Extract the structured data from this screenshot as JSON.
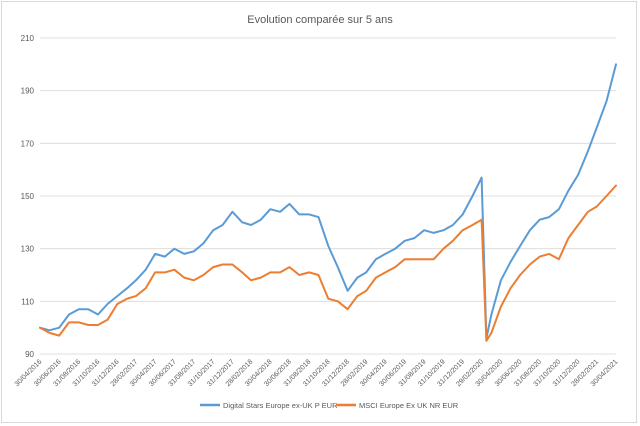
{
  "chart_data": {
    "type": "line",
    "title": "Evolution comparée sur 5 ans",
    "xlabel": "",
    "ylabel": "",
    "ylim": [
      90,
      210
    ],
    "yticks": [
      90,
      110,
      130,
      150,
      170,
      190,
      210
    ],
    "grid": "horizontal",
    "legend_position": "bottom",
    "x_tick_labels": [
      "30/04/2016",
      "30/06/2016",
      "31/08/2016",
      "31/10/2016",
      "31/12/2016",
      "28/02/2017",
      "30/04/2017",
      "30/06/2017",
      "31/08/2017",
      "31/10/2017",
      "31/12/2017",
      "28/02/2018",
      "30/04/2018",
      "30/06/2018",
      "31/08/2018",
      "31/10/2018",
      "31/12/2018",
      "28/02/2019",
      "30/04/2019",
      "30/06/2019",
      "31/08/2019",
      "31/10/2019",
      "31/12/2019",
      "29/02/2020",
      "30/04/2020",
      "30/06/2020",
      "31/08/2020",
      "31/10/2020",
      "31/12/2020",
      "28/02/2021",
      "30/04/2021"
    ],
    "x": [
      "30/04/2016",
      "30/05/2016",
      "30/06/2016",
      "31/07/2016",
      "31/08/2016",
      "30/09/2016",
      "31/10/2016",
      "30/11/2016",
      "31/12/2016",
      "31/01/2017",
      "28/02/2017",
      "31/03/2017",
      "30/04/2017",
      "31/05/2017",
      "30/06/2017",
      "31/07/2017",
      "31/08/2017",
      "30/09/2017",
      "31/10/2017",
      "30/11/2017",
      "31/12/2017",
      "31/01/2018",
      "28/02/2018",
      "31/03/2018",
      "30/04/2018",
      "31/05/2018",
      "30/06/2018",
      "31/07/2018",
      "31/08/2018",
      "30/09/2018",
      "31/10/2018",
      "30/11/2018",
      "31/12/2018",
      "31/01/2019",
      "28/02/2019",
      "31/03/2019",
      "30/04/2019",
      "31/05/2019",
      "30/06/2019",
      "31/07/2019",
      "31/08/2019",
      "30/09/2019",
      "31/10/2019",
      "30/11/2019",
      "31/12/2019",
      "31/01/2020",
      "29/02/2020",
      "15/03/2020",
      "31/03/2020",
      "30/04/2020",
      "31/05/2020",
      "30/06/2020",
      "31/07/2020",
      "31/08/2020",
      "30/09/2020",
      "31/10/2020",
      "30/11/2020",
      "31/12/2020",
      "31/01/2021",
      "28/02/2021",
      "31/03/2021",
      "30/04/2021"
    ],
    "series": [
      {
        "name": "Digital Stars Europe ex-UK P EUR",
        "color": "#5b9bd5",
        "values": [
          100,
          99,
          100,
          105,
          107,
          107,
          105,
          109,
          112,
          115,
          118,
          122,
          128,
          127,
          130,
          128,
          129,
          132,
          137,
          139,
          144,
          140,
          139,
          141,
          145,
          144,
          147,
          143,
          143,
          142,
          131,
          123,
          114,
          119,
          121,
          126,
          128,
          130,
          133,
          134,
          137,
          136,
          137,
          139,
          143,
          150,
          157,
          96,
          105,
          118,
          125,
          131,
          137,
          141,
          142,
          145,
          152,
          158,
          167,
          176,
          186,
          200
        ]
      },
      {
        "name": "MSCI Europe Ex UK NR EUR",
        "color": "#ed7d31",
        "values": [
          100,
          98,
          97,
          102,
          102,
          101,
          101,
          103,
          109,
          111,
          112,
          115,
          121,
          121,
          122,
          119,
          118,
          120,
          123,
          124,
          124,
          121,
          118,
          119,
          121,
          121,
          123,
          120,
          121,
          120,
          111,
          110,
          107,
          112,
          114,
          119,
          121,
          123,
          126,
          126,
          126,
          126,
          130,
          133,
          137,
          139,
          141,
          95,
          98,
          108,
          115,
          120,
          124,
          127,
          128,
          126,
          134,
          139,
          144,
          146,
          150,
          154
        ]
      }
    ]
  }
}
